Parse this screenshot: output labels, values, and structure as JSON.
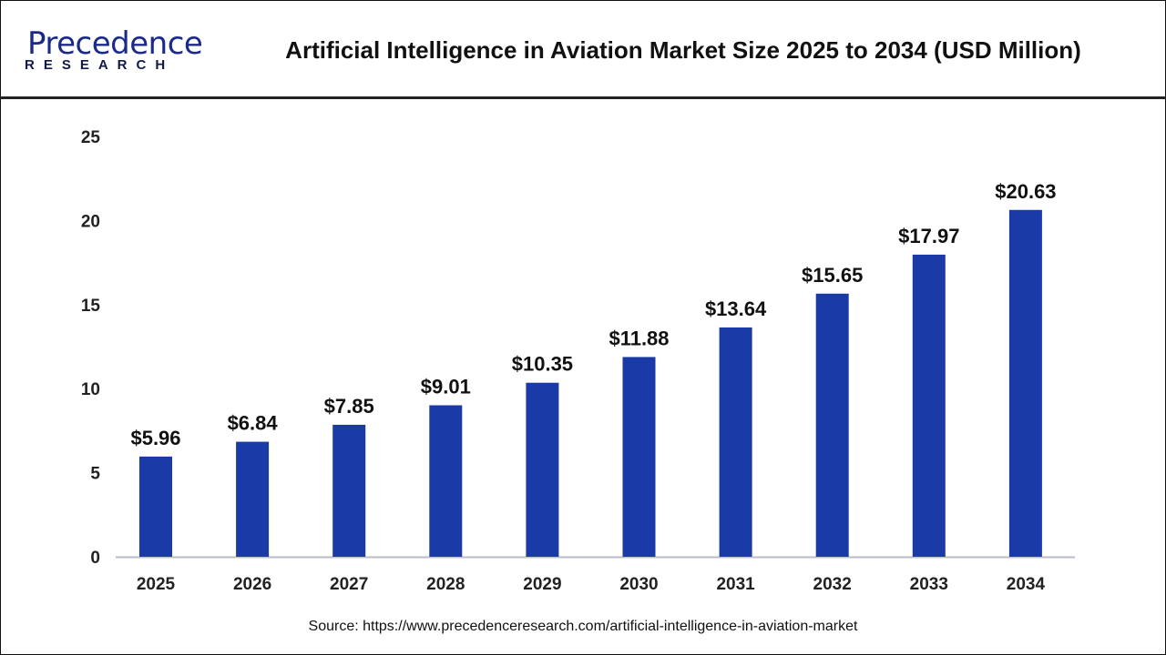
{
  "logo": {
    "main": "Precedence",
    "sub": "RESEARCH"
  },
  "chart_data": {
    "type": "bar",
    "title": "Artificial Intelligence in Aviation Market Size 2025 to 2034 (USD Million)",
    "categories": [
      "2025",
      "2026",
      "2027",
      "2028",
      "2029",
      "2030",
      "2031",
      "2032",
      "2033",
      "2034"
    ],
    "values": [
      5.96,
      6.84,
      7.85,
      9.01,
      10.35,
      11.88,
      13.64,
      15.65,
      17.97,
      20.63
    ],
    "data_labels": [
      "$5.96",
      "$6.84",
      "$7.85",
      "$9.01",
      "$10.35",
      "$11.88",
      "$13.64",
      "$15.65",
      "$17.97",
      "$20.63"
    ],
    "yticks": [
      0,
      5,
      10,
      15,
      20,
      25
    ],
    "ylim": [
      0,
      25
    ],
    "xlabel": "",
    "ylabel": "",
    "grid": false,
    "bar_color": "#1a3aa8"
  },
  "source": "Source: https://www.precedenceresearch.com/artificial-intelligence-in-aviation-market"
}
